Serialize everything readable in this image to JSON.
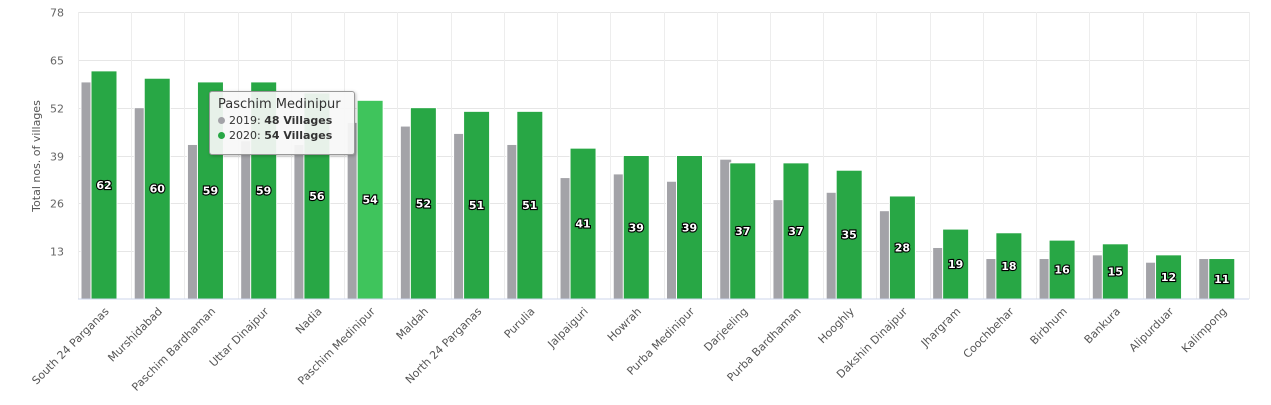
{
  "chart_data": {
    "type": "bar",
    "ylabel": "Total nos. of villages",
    "ylim": [
      0,
      78
    ],
    "yticks": [
      13,
      26,
      39,
      52,
      65,
      78
    ],
    "grid": true,
    "categories": [
      "South 24 Parganas",
      "Murshidabad",
      "Paschim Bardhaman",
      "Uttar Dinajpur",
      "Nadia",
      "Paschim Medinipur",
      "Maldah",
      "North 24 Parganas",
      "Purulia",
      "Jalpaiguri",
      "Howrah",
      "Purba Medinipur",
      "Darjeeling",
      "Purba Bardhaman",
      "Hooghly",
      "Dakshin Dinajpur",
      "Jhargram",
      "Coochbehar",
      "Birbhum",
      "Bankura",
      "Alipurduar",
      "Kalimpong"
    ],
    "series": [
      {
        "name": "2019",
        "color": "#a3a3a8",
        "values": [
          59,
          52,
          42,
          43,
          42,
          48,
          47,
          45,
          42,
          33,
          34,
          32,
          38,
          27,
          29,
          24,
          14,
          11,
          11,
          12,
          10,
          11
        ]
      },
      {
        "name": "2020",
        "color": "#28a745",
        "values": [
          62,
          60,
          59,
          59,
          56,
          54,
          52,
          51,
          51,
          41,
          39,
          39,
          37,
          37,
          35,
          28,
          19,
          18,
          16,
          15,
          12,
          11
        ]
      }
    ],
    "highlight_index": 5,
    "highlight_color": "#3fc45c"
  },
  "tooltip": {
    "title": "Paschim Medinipur",
    "rows": [
      {
        "series": "2019",
        "value": "48 Villages",
        "color": "#a3a3a8"
      },
      {
        "series": "2020",
        "value": "54 Villages",
        "color": "#28a745"
      }
    ]
  }
}
